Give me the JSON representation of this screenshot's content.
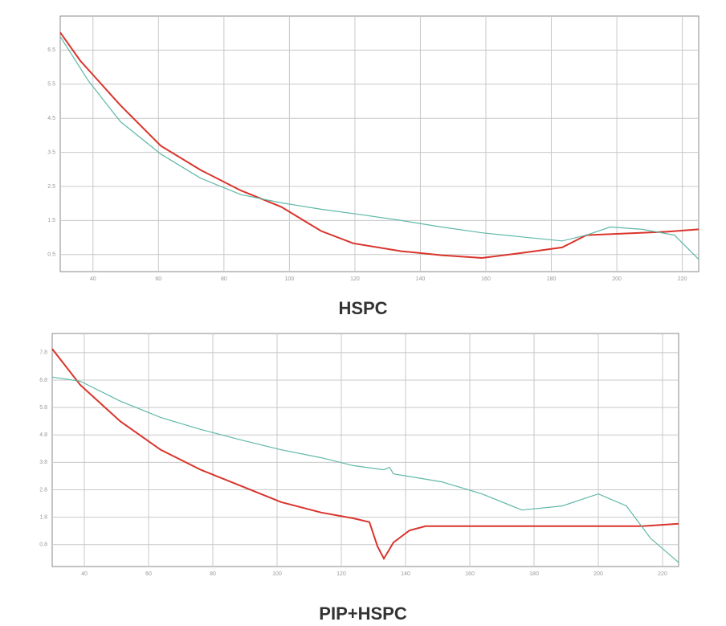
{
  "chart_data": [
    {
      "type": "line",
      "title": "HSPC",
      "grid": true,
      "xlim": [
        30,
        225
      ],
      "xticks": [
        40,
        60,
        80,
        100,
        120,
        140,
        160,
        180,
        200,
        220
      ],
      "ylim": [
        0,
        7.5
      ],
      "yticks": [
        0.5,
        1.5,
        2.5,
        3.5,
        4.5,
        5.5,
        6.5
      ],
      "series": [
        {
          "color": "#d9342b",
          "x": [
            30,
            36.1,
            48.4,
            60.7,
            72.9,
            85.2,
            97.5,
            109.7,
            119.5,
            134.2,
            146.5,
            158.8,
            171.0,
            183.3,
            190.7,
            202.9,
            215.2,
            225
          ],
          "values": [
            7.02,
            6.19,
            4.88,
            3.69,
            2.98,
            2.38,
            1.9,
            1.19,
            0.83,
            0.6,
            0.48,
            0.4,
            0.55,
            0.71,
            1.07,
            1.12,
            1.17,
            1.24
          ]
        },
        {
          "color": "#5fb8a8",
          "x": [
            30,
            38.6,
            48.4,
            60.7,
            72.9,
            85.2,
            97.5,
            109.7,
            122.0,
            134.2,
            146.5,
            158.8,
            171.0,
            183.3,
            190.7,
            198.0,
            207.8,
            217.6,
            225
          ],
          "values": [
            6.9,
            5.6,
            4.4,
            3.45,
            2.74,
            2.26,
            2.02,
            1.83,
            1.67,
            1.5,
            1.31,
            1.14,
            1.02,
            0.9,
            1.07,
            1.31,
            1.24,
            1.07,
            0.36
          ]
        }
      ]
    },
    {
      "type": "line",
      "title": "PIP+HSPC",
      "grid": true,
      "xlim": [
        30,
        225
      ],
      "xticks": [
        40,
        60,
        80,
        100,
        120,
        140,
        160,
        180,
        200,
        220
      ],
      "ylim": [
        0,
        8.5
      ],
      "yticks": [
        0.8,
        1.8,
        2.8,
        3.8,
        4.8,
        5.8,
        6.8,
        7.8
      ],
      "series": [
        {
          "color": "#d9342b",
          "x": [
            30,
            38.75,
            51.25,
            63.75,
            76.25,
            88.75,
            101.25,
            113.75,
            123.75,
            128.75,
            131.25,
            133.25,
            136.25,
            141.25,
            146.25,
            163.75,
            188.75,
            203.75,
            213.75,
            225
          ],
          "values": [
            7.94,
            6.62,
            5.29,
            4.26,
            3.53,
            2.94,
            2.35,
            1.97,
            1.76,
            1.62,
            0.74,
            0.29,
            0.88,
            1.32,
            1.47,
            1.47,
            1.47,
            1.47,
            1.47,
            1.56
          ]
        },
        {
          "color": "#5fb8a8",
          "x": [
            30,
            38.75,
            51.25,
            63.75,
            76.25,
            88.75,
            101.25,
            113.75,
            123.75,
            133.25,
            135,
            136.25,
            151.25,
            163.75,
            176.25,
            188.75,
            200,
            208.75,
            216.25,
            225
          ],
          "values": [
            6.91,
            6.76,
            6.03,
            5.44,
            5.0,
            4.62,
            4.26,
            3.97,
            3.68,
            3.53,
            3.62,
            3.38,
            3.09,
            2.65,
            2.06,
            2.21,
            2.65,
            2.21,
            1.03,
            0.15
          ]
        }
      ]
    }
  ]
}
